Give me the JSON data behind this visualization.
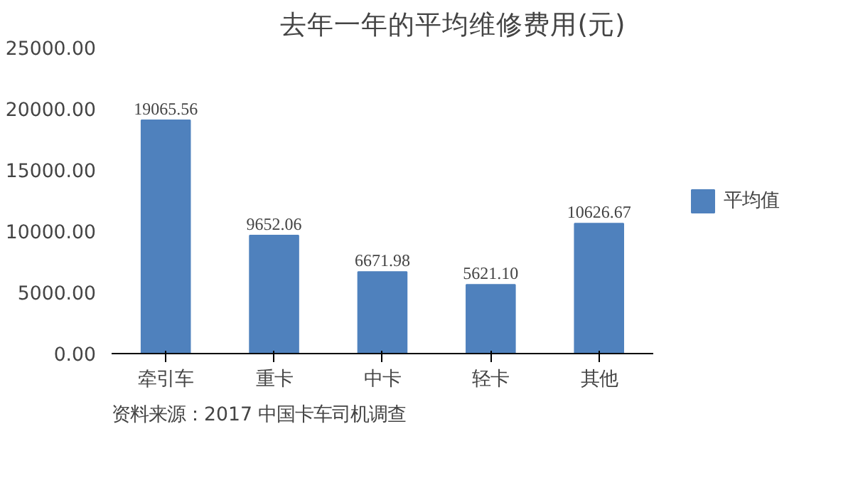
{
  "chart_data": {
    "type": "bar",
    "title": "去年一年的平均维修费用(元)",
    "categories": [
      "牵引车",
      "重卡",
      "中卡",
      "轻卡",
      "其他"
    ],
    "series": [
      {
        "name": "平均值",
        "color": "#4f81bd",
        "values": [
          19065.56,
          9652.06,
          6671.98,
          5621.1,
          10626.67
        ]
      }
    ],
    "ylim": [
      0,
      25000
    ],
    "yticks": [
      {
        "value": 0,
        "label": "0.00"
      },
      {
        "value": 5000,
        "label": "5000.00"
      },
      {
        "value": 10000,
        "label": "10000.00"
      },
      {
        "value": 15000,
        "label": "15000.00"
      },
      {
        "value": 20000,
        "label": "20000.00"
      },
      {
        "value": 25000,
        "label": "25000.00"
      }
    ],
    "value_labels": [
      "19065.56",
      "9652.06",
      "6671.98",
      "5621.10",
      "10626.67"
    ],
    "grid": false,
    "legend": "right",
    "annotations": [
      "资料来源：2017  中国卡车司机调查"
    ]
  }
}
